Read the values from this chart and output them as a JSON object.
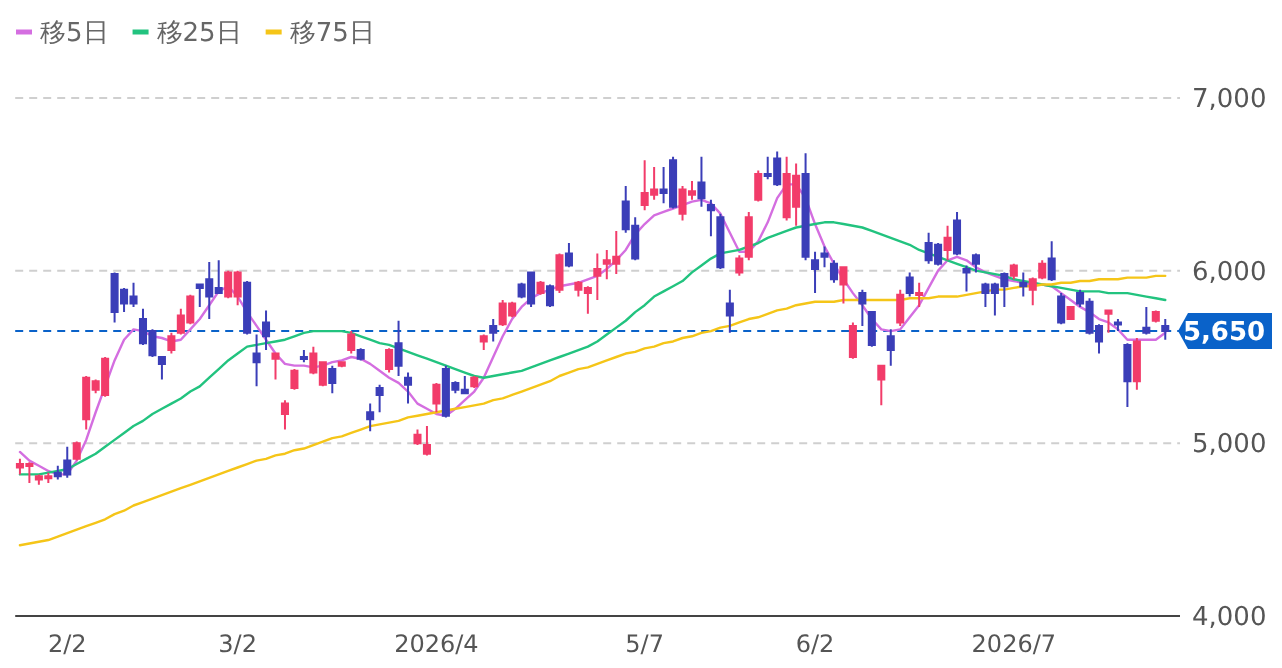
{
  "chart_data": {
    "type": "candlestick",
    "categories": [
      null,
      null,
      null,
      null,
      null,
      "2/2",
      null,
      null,
      null,
      null,
      null,
      null,
      null,
      null,
      null,
      null,
      null,
      null,
      null,
      null,
      null,
      null,
      null,
      "3/2",
      null,
      null,
      null,
      null,
      null,
      null,
      null,
      null,
      null,
      null,
      null,
      null,
      null,
      null,
      null,
      null,
      null,
      null,
      null,
      null,
      "2026/4",
      null,
      null,
      null,
      null,
      null,
      null,
      null,
      null,
      null,
      null,
      null,
      null,
      null,
      null,
      null,
      null,
      null,
      null,
      null,
      null,
      null,
      "5/7",
      null,
      null,
      null,
      null,
      null,
      null,
      null,
      null,
      null,
      null,
      null,
      null,
      null,
      null,
      null,
      null,
      null,
      "6/2",
      null,
      null,
      null,
      null,
      null,
      null,
      null,
      null,
      null,
      null,
      null,
      null,
      null,
      null,
      null,
      null,
      null,
      null,
      null,
      null,
      "2026/7",
      null,
      null,
      null,
      null,
      null,
      null,
      null,
      null,
      null,
      null,
      null,
      null,
      null,
      null,
      null,
      null
    ],
    "ohlc": [
      [
        4860,
        4910,
        4820,
        4880
      ],
      [
        4870,
        4890,
        4770,
        4880
      ],
      [
        4790,
        4820,
        4760,
        4810
      ],
      [
        4800,
        4830,
        4770,
        4810
      ],
      [
        4830,
        4870,
        4790,
        4810
      ],
      [
        4900,
        4980,
        4800,
        4820
      ],
      [
        4910,
        5010,
        4900,
        5000
      ],
      [
        5140,
        5390,
        5080,
        5380
      ],
      [
        5310,
        5370,
        5290,
        5360
      ],
      [
        5280,
        5500,
        5270,
        5490
      ],
      [
        5980,
        5990,
        5700,
        5760
      ],
      [
        5890,
        5900,
        5760,
        5810
      ],
      [
        5850,
        5930,
        5790,
        5810
      ],
      [
        5720,
        5780,
        5570,
        5580
      ],
      [
        5650,
        5660,
        5500,
        5510
      ],
      [
        5500,
        5500,
        5370,
        5460
      ],
      [
        5540,
        5640,
        5520,
        5620
      ],
      [
        5640,
        5780,
        5630,
        5740
      ],
      [
        5700,
        5860,
        5690,
        5850
      ],
      [
        5920,
        5920,
        5790,
        5900
      ],
      [
        5950,
        6050,
        5720,
        5850
      ],
      [
        5900,
        6060,
        5870,
        5870
      ],
      [
        5850,
        6000,
        5840,
        5990
      ],
      [
        5850,
        6000,
        5800,
        5990
      ],
      [
        5930,
        5940,
        5630,
        5640
      ],
      [
        5520,
        5630,
        5330,
        5470
      ],
      [
        5700,
        5770,
        5540,
        5620
      ],
      [
        5490,
        5520,
        5370,
        5520
      ],
      [
        5170,
        5250,
        5080,
        5230
      ],
      [
        5320,
        5430,
        5310,
        5420
      ],
      [
        5500,
        5540,
        5470,
        5490
      ],
      [
        5410,
        5560,
        5400,
        5520
      ],
      [
        5340,
        5470,
        5330,
        5470
      ],
      [
        5430,
        5450,
        5290,
        5350
      ],
      [
        5450,
        5470,
        5440,
        5470
      ],
      [
        5540,
        5650,
        5520,
        5630
      ],
      [
        5540,
        5550,
        5480,
        5490
      ],
      [
        5180,
        5230,
        5070,
        5140
      ],
      [
        5320,
        5340,
        5180,
        5280
      ],
      [
        5430,
        5550,
        5410,
        5540
      ],
      [
        5580,
        5710,
        5390,
        5450
      ],
      [
        5380,
        5410,
        5230,
        5340
      ],
      [
        5000,
        5080,
        4990,
        5050
      ],
      [
        4940,
        5100,
        4930,
        4990
      ],
      [
        5230,
        5350,
        5180,
        5340
      ],
      [
        5430,
        5450,
        5150,
        5160
      ],
      [
        5350,
        5360,
        5290,
        5310
      ],
      [
        5310,
        5390,
        5290,
        5290
      ],
      [
        5330,
        5390,
        5320,
        5380
      ],
      [
        5590,
        5630,
        5540,
        5620
      ],
      [
        5680,
        5720,
        5590,
        5640
      ],
      [
        5690,
        5830,
        5680,
        5810
      ],
      [
        5740,
        5820,
        5730,
        5810
      ],
      [
        5920,
        5930,
        5840,
        5850
      ],
      [
        5990,
        5990,
        5790,
        5810
      ],
      [
        5870,
        5940,
        5860,
        5930
      ],
      [
        5910,
        5920,
        5790,
        5800
      ],
      [
        5890,
        6100,
        5870,
        6090
      ],
      [
        6100,
        6160,
        6020,
        6030
      ],
      [
        5890,
        5940,
        5850,
        5930
      ],
      [
        5870,
        5910,
        5750,
        5900
      ],
      [
        5970,
        6100,
        5830,
        6010
      ],
      [
        6040,
        6120,
        5950,
        6060
      ],
      [
        6040,
        6230,
        5980,
        6080
      ],
      [
        6400,
        6490,
        6220,
        6240
      ],
      [
        6260,
        6310,
        6060,
        6070
      ],
      [
        6380,
        6640,
        6350,
        6450
      ],
      [
        6440,
        6600,
        6410,
        6470
      ],
      [
        6470,
        6600,
        6390,
        6450
      ],
      [
        6640,
        6660,
        6360,
        6370
      ],
      [
        6330,
        6490,
        6290,
        6470
      ],
      [
        6440,
        6520,
        6410,
        6460
      ],
      [
        6510,
        6660,
        6370,
        6420
      ],
      [
        6380,
        6410,
        6200,
        6350
      ],
      [
        6310,
        6330,
        6010,
        6020
      ],
      [
        5810,
        5890,
        5640,
        5740
      ],
      [
        5990,
        6090,
        5970,
        6070
      ],
      [
        6080,
        6340,
        6060,
        6310
      ],
      [
        6410,
        6580,
        6400,
        6560
      ],
      [
        6560,
        6660,
        6530,
        6550
      ],
      [
        6650,
        6690,
        6490,
        6500
      ],
      [
        6310,
        6660,
        6290,
        6560
      ],
      [
        6370,
        6620,
        6260,
        6550
      ],
      [
        6560,
        6680,
        6060,
        6080
      ],
      [
        6060,
        6110,
        5870,
        6010
      ],
      [
        6100,
        6140,
        6020,
        6080
      ],
      [
        6040,
        6060,
        5930,
        5950
      ],
      [
        5920,
        6020,
        5810,
        6020
      ],
      [
        5500,
        5700,
        5490,
        5680
      ],
      [
        5870,
        5890,
        5680,
        5810
      ],
      [
        5760,
        5760,
        5560,
        5570
      ],
      [
        5370,
        5450,
        5220,
        5450
      ],
      [
        5620,
        5660,
        5450,
        5540
      ],
      [
        5700,
        5890,
        5680,
        5860
      ],
      [
        5960,
        5990,
        5850,
        5870
      ],
      [
        5860,
        5930,
        5790,
        5870
      ],
      [
        6160,
        6220,
        6040,
        6060
      ],
      [
        6150,
        6160,
        6030,
        6040
      ],
      [
        6120,
        6260,
        6060,
        6190
      ],
      [
        6290,
        6340,
        6090,
        6100
      ],
      [
        6010,
        6030,
        5880,
        5990
      ],
      [
        6090,
        6100,
        5990,
        6040
      ],
      [
        5920,
        5930,
        5790,
        5870
      ],
      [
        5920,
        5930,
        5740,
        5870
      ],
      [
        5980,
        5990,
        5790,
        5910
      ],
      [
        5970,
        6040,
        5950,
        6030
      ],
      [
        5930,
        5990,
        5850,
        5910
      ],
      [
        5890,
        5960,
        5800,
        5950
      ],
      [
        5960,
        6060,
        5950,
        6040
      ],
      [
        6070,
        6170,
        5940,
        5950
      ],
      [
        5850,
        5870,
        5690,
        5700
      ],
      [
        5720,
        5790,
        5720,
        5790
      ],
      [
        5870,
        5890,
        5790,
        5810
      ],
      [
        5820,
        5840,
        5630,
        5640
      ],
      [
        5680,
        5690,
        5520,
        5590
      ],
      [
        5750,
        5770,
        5640,
        5770
      ],
      [
        5700,
        5720,
        5650,
        5690
      ],
      [
        5570,
        5580,
        5210,
        5360
      ],
      [
        5360,
        5610,
        5310,
        5590
      ],
      [
        5670,
        5790,
        5630,
        5640
      ],
      [
        5710,
        5770,
        5700,
        5760
      ],
      [
        5680,
        5720,
        5600,
        5650
      ]
    ],
    "colors": [
      "#f23c6a",
      "#f23c6a",
      "#f23c6a",
      "#f23c6a",
      "#3b3eb8",
      "#3b3eb8",
      "#f23c6a",
      "#f23c6a",
      "#f23c6a",
      "#f23c6a",
      "#3b3eb8",
      "#3b3eb8",
      "#3b3eb8",
      "#3b3eb8",
      "#3b3eb8",
      "#3b3eb8",
      "#f23c6a",
      "#f23c6a",
      "#f23c6a",
      "#3b3eb8",
      "#3b3eb8",
      "#3b3eb8",
      "#f23c6a",
      "#f23c6a",
      "#3b3eb8",
      "#3b3eb8",
      "#3b3eb8",
      "#f23c6a",
      "#f23c6a",
      "#f23c6a",
      "#3b3eb8",
      "#f23c6a",
      "#f23c6a",
      "#3b3eb8",
      "#f23c6a",
      "#f23c6a",
      "#3b3eb8",
      "#3b3eb8",
      "#3b3eb8",
      "#f23c6a",
      "#3b3eb8",
      "#3b3eb8",
      "#f23c6a",
      "#f23c6a",
      "#f23c6a",
      "#3b3eb8",
      "#3b3eb8",
      "#3b3eb8",
      "#f23c6a",
      "#f23c6a",
      "#3b3eb8",
      "#f23c6a",
      "#f23c6a",
      "#3b3eb8",
      "#3b3eb8",
      "#f23c6a",
      "#3b3eb8",
      "#f23c6a",
      "#3b3eb8",
      "#f23c6a",
      "#f23c6a",
      "#f23c6a",
      "#f23c6a",
      "#f23c6a",
      "#3b3eb8",
      "#3b3eb8",
      "#f23c6a",
      "#f23c6a",
      "#3b3eb8",
      "#3b3eb8",
      "#f23c6a",
      "#f23c6a",
      "#3b3eb8",
      "#3b3eb8",
      "#3b3eb8",
      "#3b3eb8",
      "#f23c6a",
      "#f23c6a",
      "#f23c6a",
      "#3b3eb8",
      "#3b3eb8",
      "#f23c6a",
      "#f23c6a",
      "#3b3eb8",
      "#3b3eb8",
      "#3b3eb8",
      "#3b3eb8",
      "#f23c6a",
      "#f23c6a",
      "#3b3eb8",
      "#3b3eb8",
      "#f23c6a",
      "#3b3eb8",
      "#f23c6a",
      "#3b3eb8",
      "#f23c6a",
      "#3b3eb8",
      "#3b3eb8",
      "#f23c6a",
      "#3b3eb8",
      "#3b3eb8",
      "#3b3eb8",
      "#3b3eb8",
      "#3b3eb8",
      "#3b3eb8",
      "#f23c6a",
      "#3b3eb8",
      "#f23c6a",
      "#f23c6a",
      "#3b3eb8",
      "#3b3eb8",
      "#f23c6a",
      "#3b3eb8",
      "#3b3eb8",
      "#3b3eb8",
      "#f23c6a",
      "#3b3eb8",
      "#3b3eb8",
      "#f23c6a",
      "#3b3eb8",
      "#f23c6a",
      "#3b3eb8"
    ],
    "series": [
      {
        "name": "移5日",
        "type": "line",
        "color": "#d46ee0",
        "values": [
          4950,
          4900,
          4870,
          4840,
          4820,
          4820,
          4900,
          5020,
          5180,
          5330,
          5480,
          5600,
          5660,
          5650,
          5620,
          5610,
          5590,
          5600,
          5660,
          5720,
          5800,
          5880,
          5910,
          5850,
          5760,
          5680,
          5600,
          5520,
          5460,
          5450,
          5450,
          5440,
          5450,
          5470,
          5480,
          5500,
          5490,
          5460,
          5420,
          5380,
          5350,
          5300,
          5230,
          5200,
          5170,
          5160,
          5200,
          5250,
          5300,
          5380,
          5500,
          5620,
          5720,
          5790,
          5840,
          5870,
          5890,
          5910,
          5920,
          5930,
          5950,
          5970,
          6010,
          6060,
          6120,
          6210,
          6270,
          6320,
          6340,
          6360,
          6380,
          6400,
          6410,
          6390,
          6330,
          6220,
          6110,
          6110,
          6170,
          6280,
          6420,
          6500,
          6500,
          6420,
          6270,
          6140,
          6040,
          5950,
          5870,
          5800,
          5720,
          5660,
          5650,
          5660,
          5730,
          5800,
          5900,
          6000,
          6060,
          6080,
          6060,
          6020,
          5990,
          5970,
          5950,
          5940,
          5930,
          5920,
          5920,
          5910,
          5870,
          5830,
          5790,
          5760,
          5720,
          5700,
          5660,
          5600,
          5600,
          5600,
          5600,
          5640
        ]
      },
      {
        "name": "移25日",
        "type": "line",
        "color": "#22c37f",
        "values": [
          4820,
          4820,
          4820,
          4830,
          4840,
          4850,
          4880,
          4910,
          4940,
          4980,
          5020,
          5060,
          5100,
          5130,
          5170,
          5200,
          5230,
          5260,
          5300,
          5330,
          5380,
          5430,
          5480,
          5520,
          5560,
          5570,
          5580,
          5590,
          5600,
          5620,
          5640,
          5650,
          5650,
          5650,
          5650,
          5640,
          5620,
          5600,
          5580,
          5570,
          5550,
          5530,
          5510,
          5490,
          5470,
          5450,
          5430,
          5410,
          5390,
          5380,
          5390,
          5400,
          5410,
          5420,
          5440,
          5460,
          5480,
          5500,
          5520,
          5540,
          5560,
          5590,
          5630,
          5670,
          5710,
          5760,
          5800,
          5850,
          5880,
          5910,
          5940,
          5990,
          6030,
          6070,
          6100,
          6110,
          6120,
          6140,
          6160,
          6190,
          6210,
          6230,
          6250,
          6260,
          6270,
          6280,
          6280,
          6270,
          6260,
          6250,
          6230,
          6210,
          6190,
          6170,
          6150,
          6120,
          6100,
          6080,
          6060,
          6040,
          6020,
          6000,
          5990,
          5980,
          5970,
          5950,
          5940,
          5930,
          5920,
          5910,
          5900,
          5890,
          5880,
          5880,
          5880,
          5870,
          5870,
          5870,
          5860,
          5850,
          5840,
          5830
        ]
      },
      {
        "name": "移75日",
        "type": "line",
        "color": "#f5c518",
        "values": [
          4410,
          4420,
          4430,
          4440,
          4460,
          4480,
          4500,
          4520,
          4540,
          4560,
          4590,
          4610,
          4640,
          4660,
          4680,
          4700,
          4720,
          4740,
          4760,
          4780,
          4800,
          4820,
          4840,
          4860,
          4880,
          4900,
          4910,
          4930,
          4940,
          4960,
          4970,
          4990,
          5010,
          5030,
          5040,
          5060,
          5080,
          5100,
          5110,
          5120,
          5130,
          5150,
          5160,
          5170,
          5180,
          5190,
          5200,
          5210,
          5220,
          5230,
          5250,
          5260,
          5280,
          5300,
          5320,
          5340,
          5360,
          5390,
          5410,
          5430,
          5440,
          5460,
          5480,
          5500,
          5520,
          5530,
          5550,
          5560,
          5580,
          5590,
          5610,
          5620,
          5640,
          5650,
          5670,
          5680,
          5700,
          5720,
          5730,
          5750,
          5770,
          5780,
          5800,
          5810,
          5820,
          5820,
          5820,
          5830,
          5830,
          5830,
          5830,
          5830,
          5830,
          5830,
          5840,
          5840,
          5840,
          5850,
          5850,
          5850,
          5860,
          5870,
          5880,
          5890,
          5890,
          5900,
          5910,
          5910,
          5920,
          5920,
          5930,
          5930,
          5940,
          5940,
          5950,
          5950,
          5950,
          5960,
          5960,
          5960,
          5970,
          5970
        ]
      }
    ],
    "ylim": [
      4000,
      7000
    ],
    "yticks": [
      {
        "value": 4000,
        "label": "4,000"
      },
      {
        "value": 5000,
        "label": "5,000"
      },
      {
        "value": 6000,
        "label": "6,000"
      },
      {
        "value": 7000,
        "label": "7,000"
      }
    ],
    "grid": "y",
    "legend": "top left",
    "ref_lines": [
      {
        "axis": "y",
        "value": 5650,
        "label": "5,650",
        "color": "#0a62c9",
        "line_style": "dashed"
      }
    ]
  }
}
